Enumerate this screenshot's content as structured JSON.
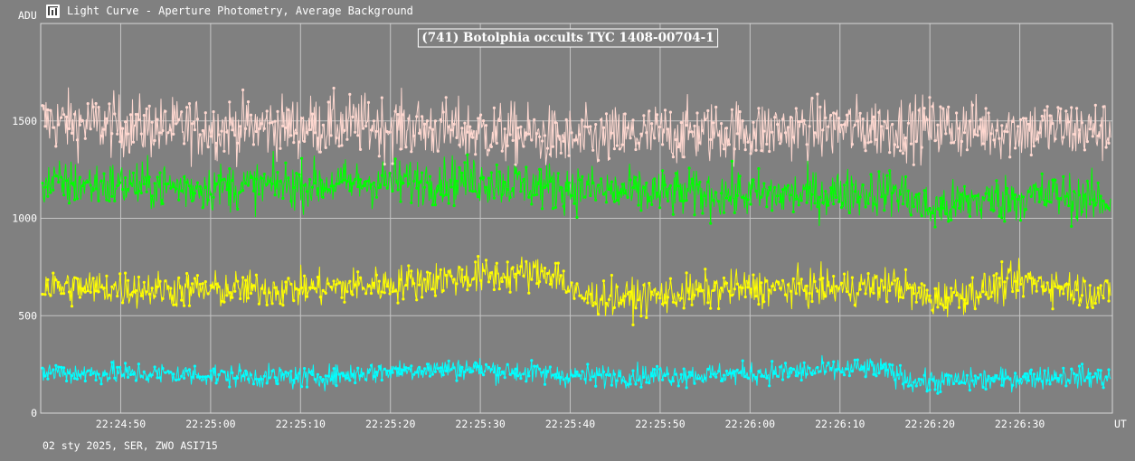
{
  "window": {
    "title": "Light Curve - Aperture Photometry, Average Background",
    "icon": "light-curve-app-icon"
  },
  "footer": {
    "text": "02 sty 2025, SER, ZWO ASI715"
  },
  "chart_data": {
    "type": "line",
    "title": "(741) Botolphia occults TYC 1408-00704-1",
    "ylabel": "ADU",
    "xlabel": "UT",
    "ylim": [
      0,
      2000
    ],
    "xlim": [
      "22:24:41.1",
      "22:26:40.3"
    ],
    "yticks": [
      0,
      500,
      1000,
      1500
    ],
    "xticks": [
      "22:24:50",
      "22:25:00",
      "22:25:10",
      "22:25:20",
      "22:25:30",
      "22:25:40",
      "22:25:50",
      "22:26:00",
      "22:26:10",
      "22:26:20",
      "22:26:30"
    ],
    "grid": true,
    "legend": "none",
    "samples": 1200,
    "series": [
      {
        "color": "#ffd8d0",
        "mean": 1470,
        "noise": 110,
        "trend": [
          [
            0,
            1500
          ],
          [
            0.12,
            1460
          ],
          [
            0.3,
            1480
          ],
          [
            0.45,
            1430
          ],
          [
            0.5,
            1400
          ],
          [
            0.6,
            1440
          ],
          [
            0.8,
            1470
          ],
          [
            1,
            1450
          ]
        ]
      },
      {
        "color": "#00ff00",
        "mean": 1150,
        "noise": 85,
        "trend": [
          [
            0,
            1180
          ],
          [
            0.15,
            1160
          ],
          [
            0.3,
            1180
          ],
          [
            0.4,
            1200
          ],
          [
            0.55,
            1130
          ],
          [
            0.7,
            1120
          ],
          [
            0.8,
            1140
          ],
          [
            0.83,
            1040
          ],
          [
            0.87,
            1090
          ],
          [
            0.95,
            1120
          ],
          [
            1,
            1080
          ]
        ]
      },
      {
        "color": "#ffff00",
        "mean": 650,
        "noise": 65,
        "trend": [
          [
            0,
            650
          ],
          [
            0.15,
            630
          ],
          [
            0.25,
            640
          ],
          [
            0.32,
            660
          ],
          [
            0.4,
            700
          ],
          [
            0.48,
            720
          ],
          [
            0.5,
            600
          ],
          [
            0.55,
            590
          ],
          [
            0.65,
            640
          ],
          [
            0.75,
            640
          ],
          [
            0.8,
            660
          ],
          [
            0.83,
            580
          ],
          [
            0.88,
            630
          ],
          [
            0.92,
            680
          ],
          [
            1,
            610
          ]
        ]
      },
      {
        "color": "#00ffff",
        "mean": 190,
        "noise": 40,
        "trend": [
          [
            0,
            210
          ],
          [
            0.12,
            200
          ],
          [
            0.25,
            180
          ],
          [
            0.33,
            220
          ],
          [
            0.4,
            230
          ],
          [
            0.5,
            190
          ],
          [
            0.65,
            200
          ],
          [
            0.78,
            230
          ],
          [
            0.82,
            160
          ],
          [
            0.88,
            170
          ],
          [
            0.95,
            190
          ],
          [
            1,
            180
          ]
        ]
      }
    ]
  }
}
